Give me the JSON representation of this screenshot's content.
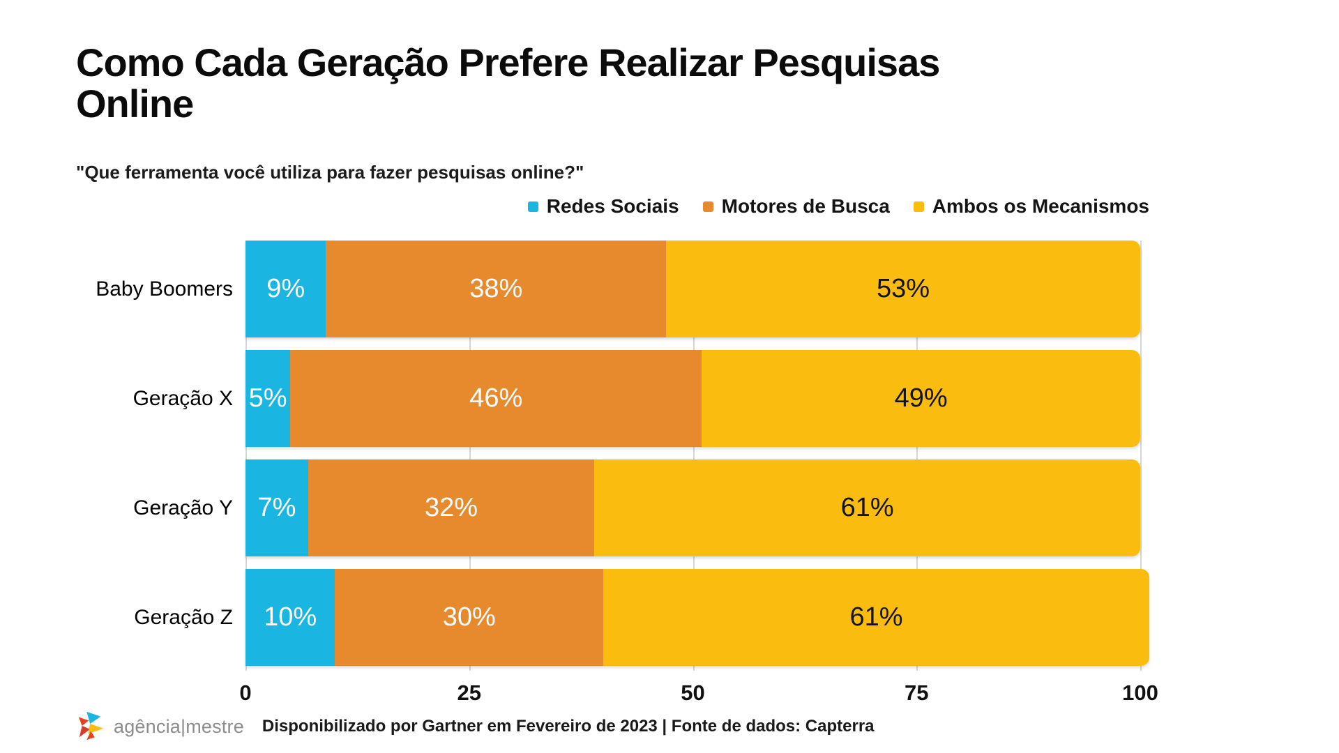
{
  "title": "Como Cada Geração Prefere Realizar Pesquisas\nOnline",
  "subtitle": "\"Que ferramenta você utiliza para fazer pesquisas online?\"",
  "colors": {
    "redes_sociais": "#1ab5e0",
    "motores_de_busca": "#e78a2e",
    "ambos_os_mecanismos": "#fabd0f",
    "gridline": "#d6d6d6"
  },
  "legend": [
    {
      "label": "Redes Sociais",
      "color": "#1ab5e0"
    },
    {
      "label": "Motores de Busca",
      "color": "#e78a2e"
    },
    {
      "label": "Ambos os Mecanismos",
      "color": "#fabd0f"
    }
  ],
  "chart_data": {
    "type": "bar",
    "orientation": "horizontal",
    "stacked": true,
    "title": "Como Cada Geração Prefere Realizar Pesquisas Online",
    "subtitle": "\"Que ferramenta você utiliza para fazer pesquisas online?\"",
    "categories": [
      "Baby Boomers",
      "Geração X",
      "Geração Y",
      "Geração Z"
    ],
    "series": [
      {
        "name": "Redes Sociais",
        "color": "#1ab5e0",
        "label_color": "#ffffff",
        "values": [
          9,
          5,
          7,
          10
        ]
      },
      {
        "name": "Motores de Busca",
        "color": "#e78a2e",
        "label_color": "#ffffff",
        "values": [
          38,
          46,
          32,
          30
        ]
      },
      {
        "name": "Ambos os Mecanismos",
        "color": "#fabd0f",
        "label_color": "#131313",
        "values": [
          53,
          49,
          61,
          61
        ]
      }
    ],
    "value_suffix": "%",
    "xlabel": "",
    "ylabel": "",
    "xlim": [
      0,
      100
    ],
    "x_ticks": [
      0,
      25,
      50,
      75,
      100
    ],
    "grid": true,
    "legend_position": "top-right"
  },
  "footer": {
    "logo_text": "agência|mestre",
    "source_text": "Disponibilizado por Gartner em Fevereiro de 2023 | Fonte de dados: Capterra"
  }
}
